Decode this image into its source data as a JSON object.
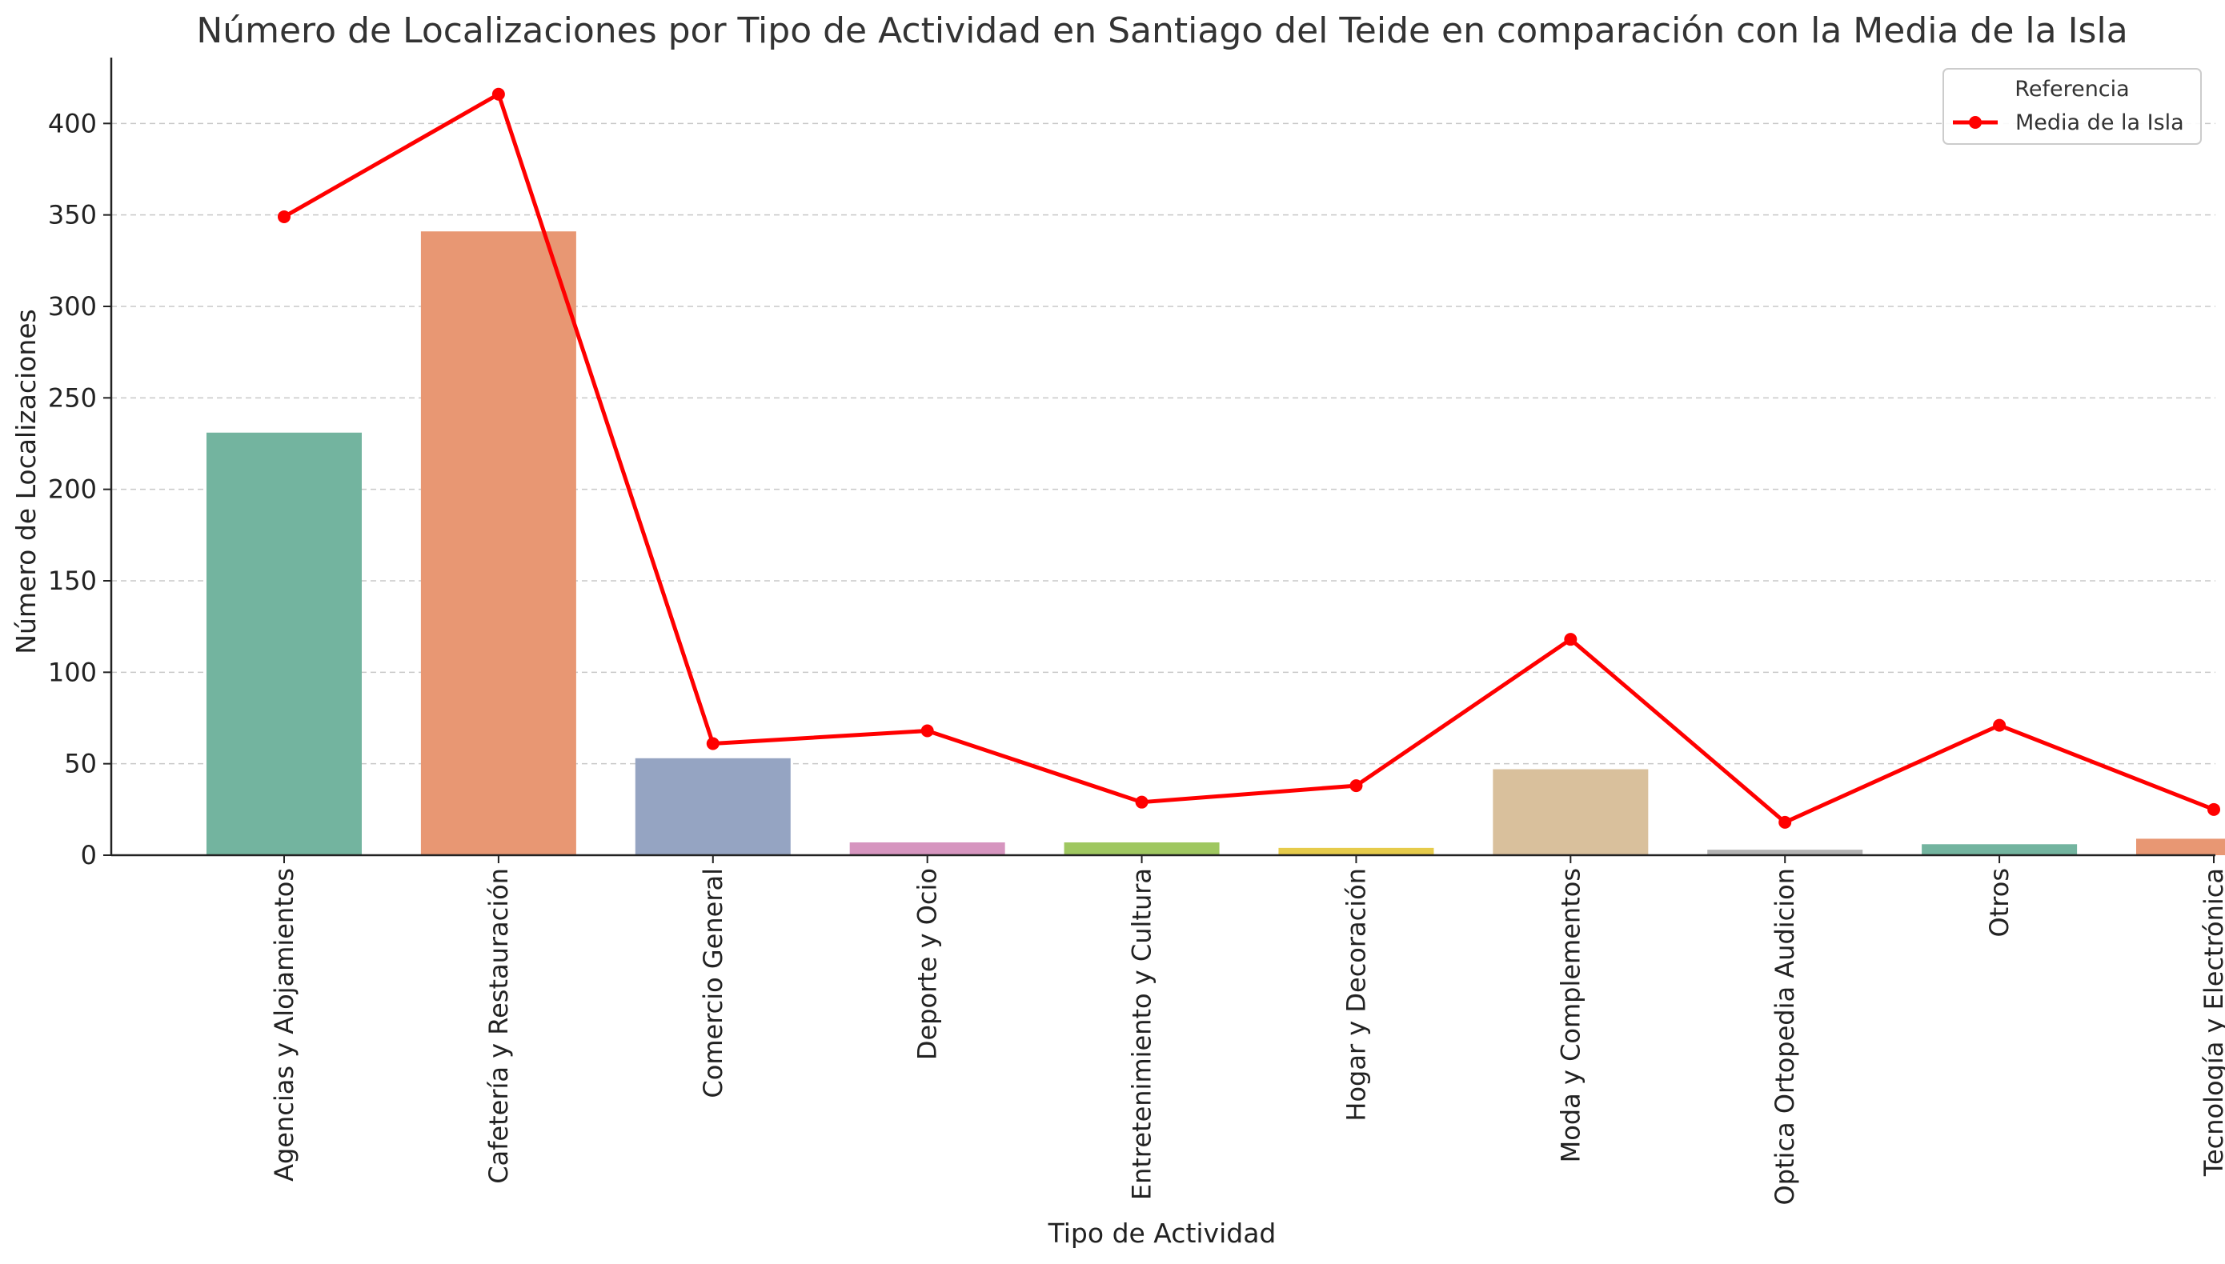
{
  "chart_data": {
    "type": "bar",
    "title": "Número de Localizaciones por Tipo de Actividad en Santiago del Teide en comparación con la Media de la Isla",
    "xlabel": "Tipo de Actividad",
    "ylabel": "Número de Localizaciones",
    "ylim": [
      0,
      436
    ],
    "yticks": [
      0,
      50,
      100,
      150,
      200,
      250,
      300,
      350,
      400
    ],
    "grid": "horizontal dashed",
    "legend_position": "top-right",
    "legend_title": "Referencia",
    "categories": [
      "Agencias y Alojamientos",
      "Cafetería y Restauración",
      "Comercio General",
      "Deporte y Ocio",
      "Entretenimiento y Cultura",
      "Hogar y Decoración",
      "Moda y Complementos",
      "Optica Ortopedia Audicion",
      "Otros",
      "Tecnología y Electrónica"
    ],
    "series": [
      {
        "type": "bar",
        "values": [
          231,
          341,
          53,
          7,
          7,
          4,
          47,
          3,
          6,
          9
        ],
        "colors": [
          "#73b49f",
          "#e89773",
          "#95a4c2",
          "#d695bf",
          "#9fc760",
          "#e6cb4b",
          "#d9c09c",
          "#b3b3b3",
          "#73b49f",
          "#e89773"
        ]
      },
      {
        "type": "line",
        "name": "Media de la Isla",
        "color": "#ff0000",
        "values": [
          349,
          416,
          61,
          68,
          29,
          38,
          118,
          18,
          71,
          25
        ]
      }
    ]
  }
}
